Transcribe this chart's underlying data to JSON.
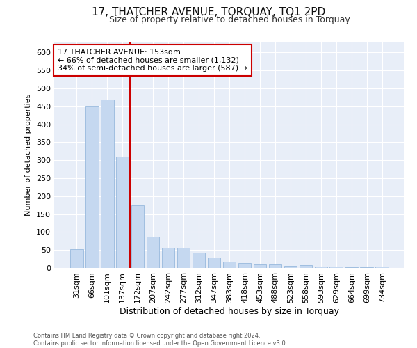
{
  "title": "17, THATCHER AVENUE, TORQUAY, TQ1 2PD",
  "subtitle": "Size of property relative to detached houses in Torquay",
  "xlabel": "Distribution of detached houses by size in Torquay",
  "ylabel": "Number of detached properties",
  "footnote1": "Contains HM Land Registry data © Crown copyright and database right 2024.",
  "footnote2": "Contains public sector information licensed under the Open Government Licence v3.0.",
  "categories": [
    "31sqm",
    "66sqm",
    "101sqm",
    "137sqm",
    "172sqm",
    "207sqm",
    "242sqm",
    "277sqm",
    "312sqm",
    "347sqm",
    "383sqm",
    "418sqm",
    "453sqm",
    "488sqm",
    "523sqm",
    "558sqm",
    "593sqm",
    "629sqm",
    "664sqm",
    "699sqm",
    "734sqm"
  ],
  "values": [
    52,
    450,
    470,
    310,
    175,
    87,
    57,
    57,
    43,
    30,
    17,
    13,
    10,
    10,
    5,
    8,
    3,
    3,
    2,
    2,
    4
  ],
  "bar_color": "#c5d8f0",
  "bar_edge_color": "#8ab0d8",
  "vline_x": 3.5,
  "vline_color": "#cc0000",
  "annotation_title": "17 THATCHER AVENUE: 153sqm",
  "annotation_line1": "← 66% of detached houses are smaller (1,132)",
  "annotation_line2": "34% of semi-detached houses are larger (587) →",
  "annotation_box_color": "#ffffff",
  "annotation_box_edge": "#cc0000",
  "ylim": [
    0,
    630
  ],
  "yticks": [
    0,
    50,
    100,
    150,
    200,
    250,
    300,
    350,
    400,
    450,
    500,
    550,
    600
  ],
  "background_color": "#ffffff",
  "plot_bg_color": "#e8eef8",
  "grid_color": "#ffffff",
  "title_fontsize": 11,
  "subtitle_fontsize": 9,
  "xlabel_fontsize": 9,
  "ylabel_fontsize": 8,
  "tick_fontsize": 8,
  "annot_fontsize": 8,
  "footnote_fontsize": 6
}
